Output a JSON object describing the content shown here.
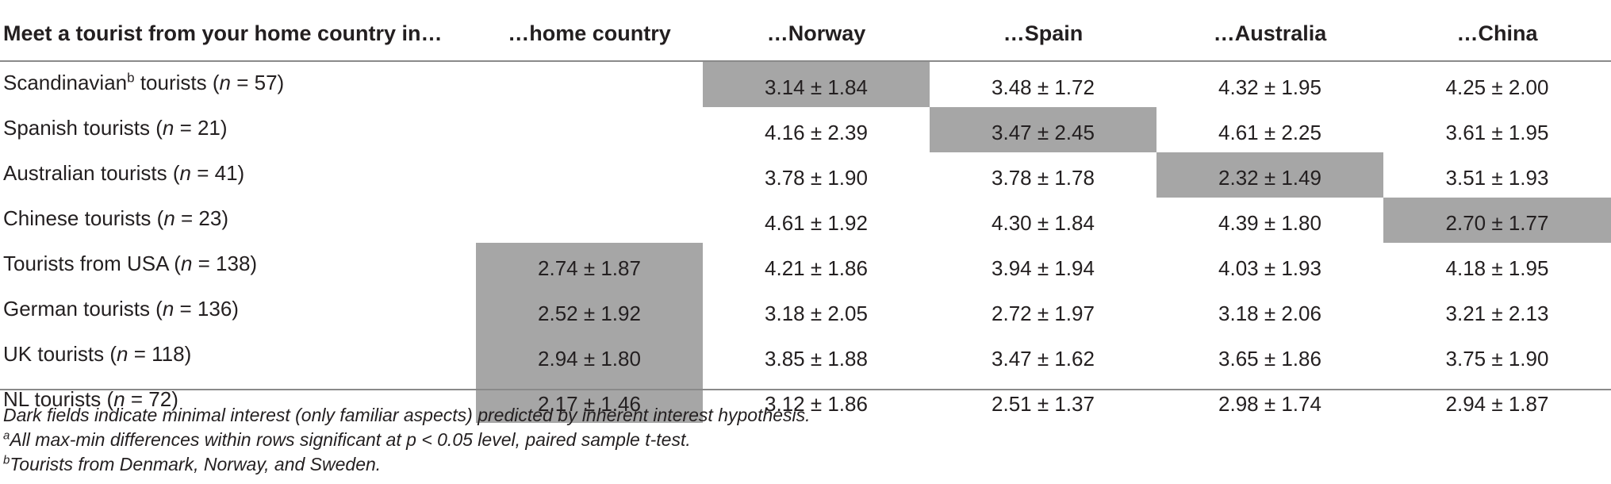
{
  "table": {
    "header": {
      "row_label": "Meet a tourist from your home country in…",
      "columns": [
        "…home country",
        "…Norway",
        "…Spain",
        "…Australia",
        "…China"
      ]
    },
    "rows": [
      {
        "label_pre": "Scandinavian",
        "label_sup": "b",
        "label_post": " tourists (",
        "n_var": "n",
        "n_val": " = 57)",
        "cells": [
          "",
          "3.14 ± 1.84",
          "3.48 ± 1.72",
          "4.32 ± 1.95",
          "4.25 ± 2.00"
        ],
        "shaded_index": 1
      },
      {
        "label_pre": "Spanish tourists (",
        "label_sup": "",
        "label_post": "",
        "n_var": "n",
        "n_val": " = 21)",
        "cells": [
          "",
          "4.16 ± 2.39",
          "3.47 ± 2.45",
          "4.61 ± 2.25",
          "3.61 ± 1.95"
        ],
        "shaded_index": 2
      },
      {
        "label_pre": "Australian tourists (",
        "label_sup": "",
        "label_post": "",
        "n_var": "n",
        "n_val": " = 41)",
        "cells": [
          "",
          "3.78 ± 1.90",
          "3.78 ± 1.78",
          "2.32 ± 1.49",
          "3.51 ± 1.93"
        ],
        "shaded_index": 3
      },
      {
        "label_pre": "Chinese tourists (",
        "label_sup": "",
        "label_post": "",
        "n_var": "n",
        "n_val": " = 23)",
        "cells": [
          "",
          "4.61 ± 1.92",
          "4.30 ± 1.84",
          "4.39 ± 1.80",
          "2.70 ± 1.77"
        ],
        "shaded_index": 4
      },
      {
        "label_pre": "Tourists from USA (",
        "label_sup": "",
        "label_post": "",
        "n_var": "n",
        "n_val": " = 138)",
        "cells": [
          "2.74 ± 1.87",
          "4.21 ± 1.86",
          "3.94 ± 1.94",
          "4.03 ± 1.93",
          "4.18 ± 1.95"
        ],
        "shaded_index": 0
      },
      {
        "label_pre": "German tourists (",
        "label_sup": "",
        "label_post": "",
        "n_var": "n",
        "n_val": " = 136)",
        "cells": [
          "2.52 ± 1.92",
          "3.18 ± 2.05",
          "2.72 ± 1.97",
          "3.18 ± 2.06",
          "3.21 ± 2.13"
        ],
        "shaded_index": 0
      },
      {
        "label_pre": "UK tourists (",
        "label_sup": "",
        "label_post": "",
        "n_var": "n",
        "n_val": " = 118)",
        "cells": [
          "2.94 ± 1.80",
          "3.85 ± 1.88",
          "3.47 ± 1.62",
          "3.65 ± 1.86",
          "3.75 ± 1.90"
        ],
        "shaded_index": 0
      },
      {
        "label_pre": "NL tourists (",
        "label_sup": "",
        "label_post": "",
        "n_var": "n",
        "n_val": " = 72)",
        "cells": [
          "2.17 ± 1.46",
          "3.12 ± 1.86",
          "2.51 ± 1.37",
          "2.98 ± 1.74",
          "2.94 ± 1.87"
        ],
        "shaded_index": 0
      }
    ],
    "shade_color": "#a6a6a6"
  },
  "notes": {
    "line1": "Dark fields indicate minimal interest (only familiar aspects) predicted by inherent interest hypothesis.",
    "line2_sup": "a",
    "line2": "All max-min differences within rows significant at p < 0.05 level, paired sample t-test.",
    "line3_sup": "b",
    "line3": "Tourists from Denmark, Norway, and Sweden."
  }
}
